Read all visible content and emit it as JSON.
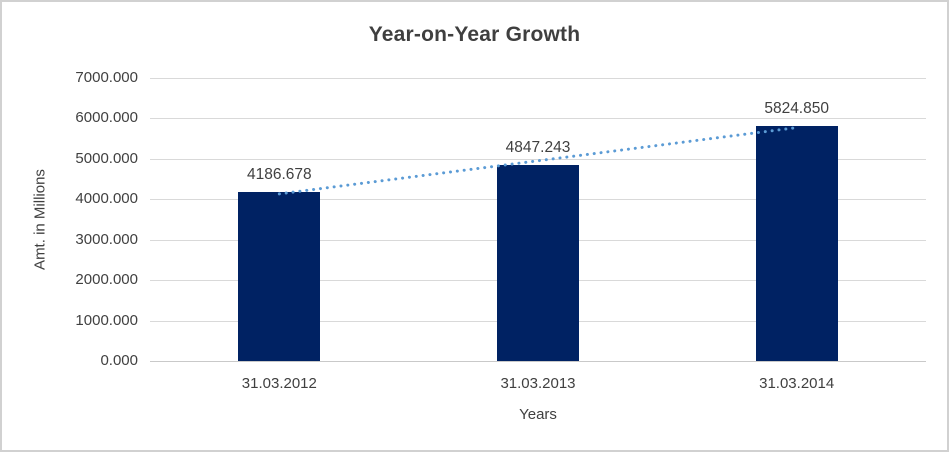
{
  "chart_data": {
    "type": "bar",
    "title": "Year-on-Year Growth",
    "xlabel": "Years",
    "ylabel": "Amt. in Millions",
    "categories": [
      "31.03.2012",
      "31.03.2013",
      "31.03.2014"
    ],
    "values": [
      4186.678,
      4847.243,
      5824.85
    ],
    "data_labels": [
      "4186.678",
      "4847.243",
      "5824.850"
    ],
    "ylim": [
      0,
      7000
    ],
    "ytick_step": 1000,
    "ytick_labels": [
      "0.000",
      "1000.000",
      "2000.000",
      "3000.000",
      "4000.000",
      "5000.000",
      "6000.000",
      "7000.000"
    ],
    "grid": true,
    "legend": "none",
    "trendline": {
      "type": "linear",
      "style": "dotted"
    },
    "colors": {
      "bar": "#002263",
      "trendline": "#5b9bd5",
      "gridline": "#d9d9d9",
      "axis_line": "#c9c9c9",
      "text": "#404040",
      "title": "#3f3f3f",
      "frame_border": "#d1d1d1",
      "background": "#ffffff"
    }
  }
}
